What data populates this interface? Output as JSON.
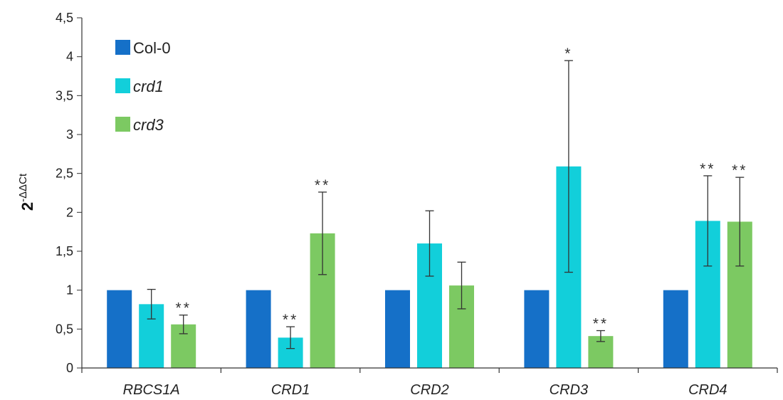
{
  "chart_data": {
    "type": "bar",
    "ylabel": "2",
    "ylabel_superscript": "-ΔΔCt",
    "ylim": [
      0,
      4.5
    ],
    "yticks": [
      {
        "value": 0,
        "label": "0"
      },
      {
        "value": 0.5,
        "label": "0,5"
      },
      {
        "value": 1,
        "label": "1"
      },
      {
        "value": 1.5,
        "label": "1,5"
      },
      {
        "value": 2,
        "label": "2"
      },
      {
        "value": 2.5,
        "label": "2,5"
      },
      {
        "value": 3,
        "label": "3"
      },
      {
        "value": 3.5,
        "label": "3,5"
      },
      {
        "value": 4,
        "label": "4"
      },
      {
        "value": 4.5,
        "label": "4,5"
      }
    ],
    "categories": [
      "RBCS1A",
      "CRD1",
      "CRD2",
      "CRD3",
      "CRD4"
    ],
    "legend_position": "top-left",
    "series": [
      {
        "name": "Col-0",
        "italic": false,
        "color": "#1570C8",
        "values": [
          1,
          1,
          1,
          1,
          1
        ],
        "errors": [
          null,
          null,
          null,
          null,
          null
        ],
        "significance": [
          "",
          "",
          "",
          "",
          ""
        ]
      },
      {
        "name": "crd1",
        "italic": true,
        "color": "#12CFDA",
        "values": [
          0.82,
          0.39,
          1.6,
          2.59,
          1.89
        ],
        "errors": [
          0.19,
          0.14,
          0.42,
          1.36,
          0.58
        ],
        "significance": [
          "",
          "**",
          "",
          "*",
          "**"
        ]
      },
      {
        "name": "crd3",
        "italic": true,
        "color": "#7CC962",
        "values": [
          0.56,
          1.73,
          1.06,
          0.41,
          1.88
        ],
        "errors": [
          0.12,
          0.53,
          0.3,
          0.07,
          0.57
        ],
        "significance": [
          "**",
          "**",
          "",
          "**",
          "**"
        ]
      }
    ]
  }
}
